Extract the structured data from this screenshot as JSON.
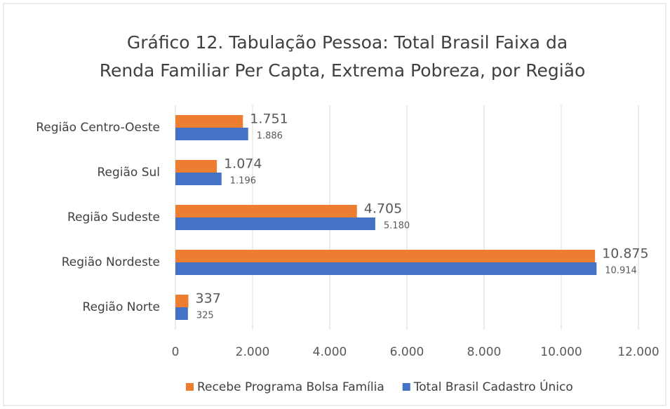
{
  "chart_data": {
    "type": "hbar",
    "title": [
      "Gráfico 12. Tabulação Pessoa: Total Brasil Faixa da",
      "Renda Familiar Per Capta, Extrema Pobreza, por Região"
    ],
    "categories": [
      "Região Centro-Oeste",
      "Região Sul",
      "Região Sudeste",
      "Região Nordeste",
      "Região Norte"
    ],
    "series": [
      {
        "name": "Recebe Programa Bolsa Família",
        "color": "#ed7d31",
        "values": [
          1751,
          1074,
          4705,
          10875,
          337
        ],
        "value_labels": [
          "1.751",
          "1.074",
          "4.705",
          "10.875",
          "337"
        ]
      },
      {
        "name": "Total Brasil Cadastro Único",
        "color": "#4472c4",
        "values": [
          1886,
          1196,
          5180,
          10914,
          325
        ],
        "value_labels": [
          "1.886",
          "1.196",
          "5.180",
          "10.914",
          "325"
        ]
      }
    ],
    "xlim": [
      0,
      12000
    ],
    "xticks": [
      0,
      {
        "value": 2000,
        "label": "2.000"
      },
      {
        "value": 4000,
        "label": "4.000"
      },
      {
        "value": 6000,
        "label": "6.000"
      },
      {
        "value": 8000,
        "label": "8.000"
      },
      {
        "value": 10000,
        "label": "10.000"
      },
      {
        "value": 12000,
        "label": "12.000"
      }
    ],
    "grid": true,
    "legend": "bottom"
  }
}
